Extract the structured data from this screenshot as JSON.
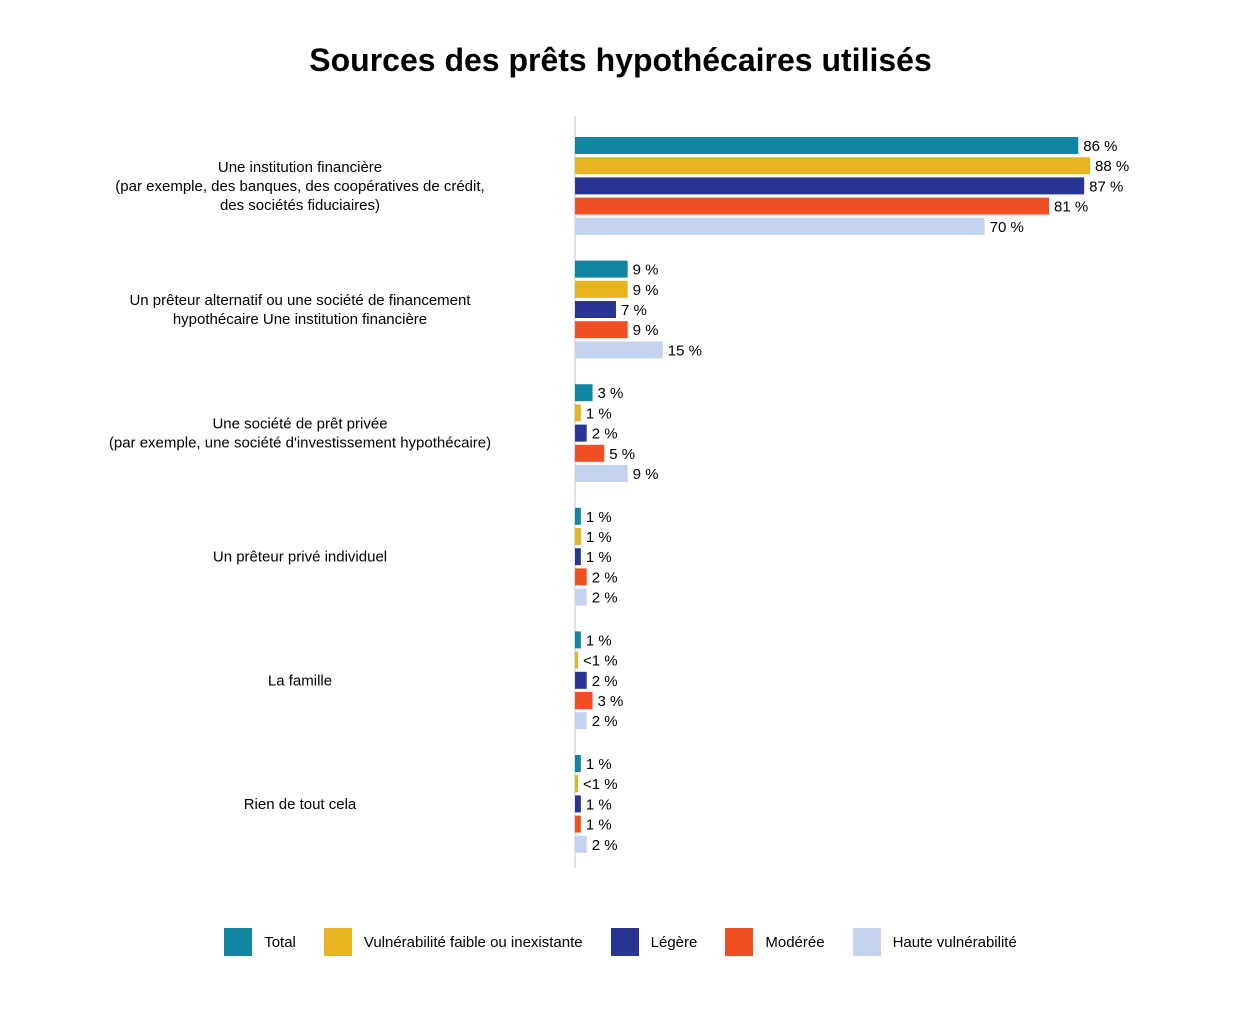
{
  "chart_data": {
    "type": "bar",
    "orientation": "horizontal",
    "title": "Sources des prêts hypothécaires utilisés",
    "categories": [
      [
        "Une institution financière",
        "(par exemple, des banques, des coopératives de crédit,",
        "des sociétés fiduciaires)"
      ],
      [
        "Un prêteur alternatif ou une société de financement",
        "hypothécaire Une institution financière"
      ],
      [
        "Une société de prêt privée",
        "(par exemple, une société d'investissement hypothécaire)"
      ],
      [
        "Un prêteur privé individuel"
      ],
      [
        "La famille"
      ],
      [
        "Rien de tout cela"
      ]
    ],
    "series": [
      {
        "name": "Total",
        "color": "#1285a2",
        "values": [
          86,
          9,
          3,
          1,
          1,
          1
        ],
        "labels": [
          "86 %",
          "9 %",
          "3 %",
          "1 %",
          "1 %",
          "1 %"
        ]
      },
      {
        "name": "Vulnérabilité faible ou inexistante",
        "color": "#e8b321",
        "values": [
          88,
          9,
          1,
          1,
          0.5,
          0.5
        ],
        "labels": [
          "88 %",
          "9 %",
          "1 %",
          "1 %",
          "<1 %",
          "<1 %"
        ]
      },
      {
        "name": "Légère",
        "color": "#283593",
        "values": [
          87,
          7,
          2,
          1,
          2,
          1
        ],
        "labels": [
          "87 %",
          "7 %",
          "2 %",
          "1 %",
          "2 %",
          "1 %"
        ]
      },
      {
        "name": "Modérée",
        "color": "#f04e23",
        "values": [
          81,
          9,
          5,
          2,
          3,
          1
        ],
        "labels": [
          "81 %",
          "9 %",
          "5 %",
          "2 %",
          "3 %",
          "1 %"
        ]
      },
      {
        "name": "Haute vulnérabilité",
        "color": "#c5d4ee",
        "values": [
          70,
          15,
          9,
          2,
          2,
          2
        ],
        "labels": [
          "70 %",
          "15 %",
          "9 %",
          "2 %",
          "2 %",
          "2 %"
        ]
      }
    ],
    "xlim": [
      0,
      88
    ],
    "grid": false,
    "legend_position": "bottom"
  }
}
